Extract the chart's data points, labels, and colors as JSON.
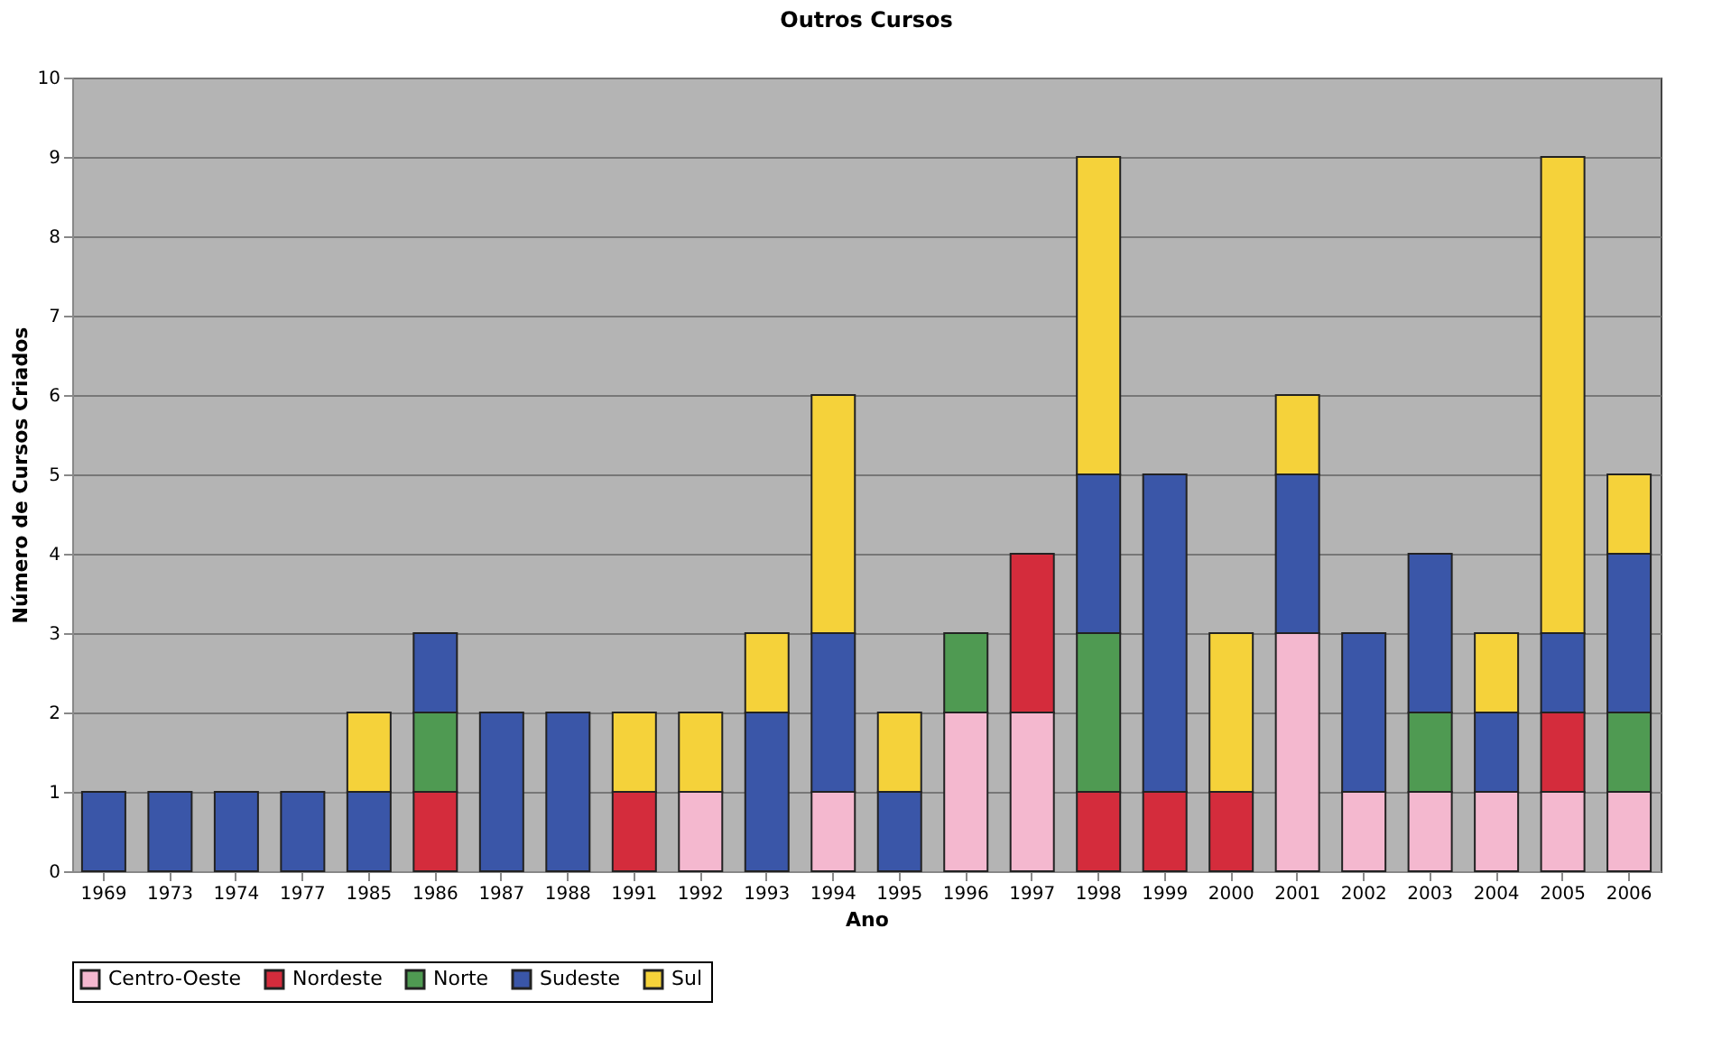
{
  "chart_data": {
    "type": "bar",
    "stacked": true,
    "title": "Outros Cursos",
    "xlabel": "Ano",
    "ylabel": "Número de Cursos Criados",
    "categories": [
      "1969",
      "1973",
      "1974",
      "1977",
      "1985",
      "1986",
      "1987",
      "1988",
      "1991",
      "1992",
      "1993",
      "1994",
      "1995",
      "1996",
      "1997",
      "1998",
      "1999",
      "2000",
      "2001",
      "2002",
      "2003",
      "2004",
      "2005",
      "2006"
    ],
    "series": [
      {
        "name": "Centro-Oeste",
        "color": "#f4b8cf",
        "values": [
          null,
          null,
          null,
          null,
          null,
          null,
          null,
          null,
          null,
          1,
          null,
          1,
          null,
          2,
          2,
          null,
          null,
          null,
          3,
          1,
          1,
          1,
          1,
          1
        ]
      },
      {
        "name": "Nordeste",
        "color": "#d42c3c",
        "values": [
          null,
          null,
          null,
          null,
          null,
          1,
          null,
          null,
          1,
          null,
          null,
          null,
          null,
          null,
          2,
          1,
          1,
          1,
          null,
          null,
          null,
          null,
          1,
          null
        ]
      },
      {
        "name": "Norte",
        "color": "#4f9a52",
        "values": [
          null,
          null,
          null,
          null,
          null,
          1,
          null,
          null,
          null,
          null,
          null,
          null,
          null,
          1,
          null,
          2,
          null,
          null,
          null,
          null,
          1,
          null,
          null,
          1
        ]
      },
      {
        "name": "Sudeste",
        "color": "#3a56a8",
        "values": [
          1,
          1,
          1,
          1,
          1,
          1,
          2,
          2,
          null,
          null,
          2,
          2,
          1,
          null,
          null,
          2,
          4,
          null,
          2,
          2,
          2,
          1,
          1,
          2
        ]
      },
      {
        "name": "Sul",
        "color": "#f5d23a",
        "values": [
          null,
          null,
          null,
          null,
          1,
          null,
          null,
          null,
          1,
          1,
          1,
          3,
          1,
          null,
          null,
          4,
          null,
          2,
          1,
          null,
          null,
          1,
          6,
          1
        ]
      }
    ],
    "ylim": [
      0,
      10
    ],
    "yticks": [
      0,
      1,
      2,
      3,
      4,
      5,
      6,
      7,
      8,
      9,
      10
    ],
    "grid": "y",
    "legend": "bottom"
  }
}
